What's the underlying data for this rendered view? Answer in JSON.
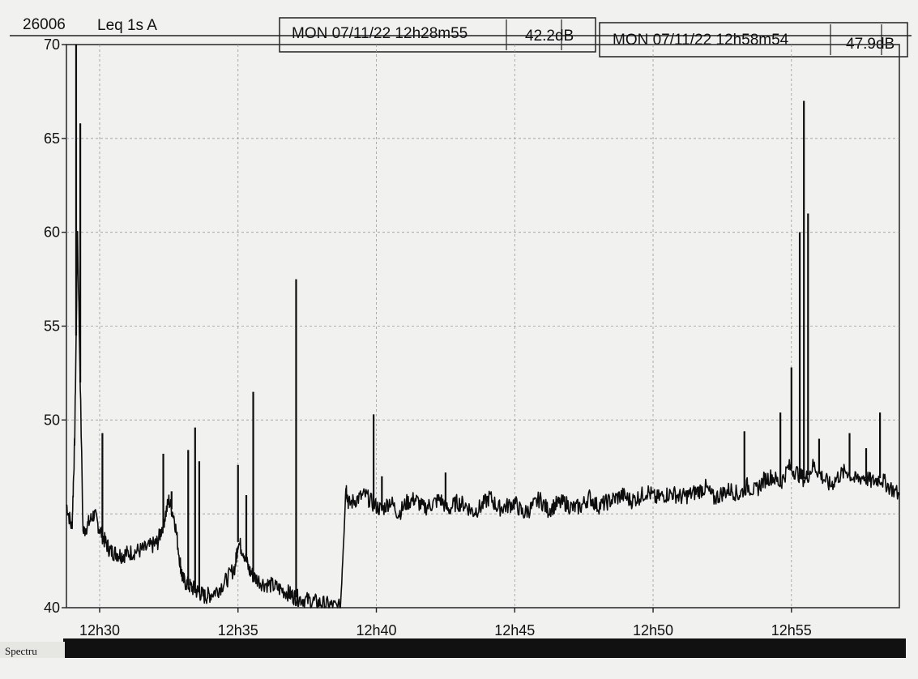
{
  "header": {
    "channel_id": "26006",
    "measure": "Leq 1s  A",
    "cursor1": {
      "datetime": "MON 07/11/22 12h28m55",
      "value": "42.2dB"
    },
    "cursor2": {
      "datetime": "MON 07/11/22 12h58m54",
      "value": "47.9dB"
    }
  },
  "footer": {
    "tab_label": "Spectru"
  },
  "colors": {
    "trace": "#0d0d0d",
    "grid": "#9a9a9a",
    "background": "#f1f1ef"
  },
  "chart_data": {
    "type": "line",
    "title": "",
    "xlabel": "",
    "ylabel": "",
    "ylim": [
      40,
      70
    ],
    "yticks": [
      "40",
      "50",
      "55",
      "60",
      "65",
      "70"
    ],
    "xlim_minutes": [
      28.8,
      58.9
    ],
    "xticks": [
      {
        "label": "12h30",
        "minute": 30
      },
      {
        "label": "12h35",
        "minute": 35
      },
      {
        "label": "12h40",
        "minute": 40
      },
      {
        "label": "12h45",
        "minute": 45
      },
      {
        "label": "12h50",
        "minute": 50
      },
      {
        "label": "12h55",
        "minute": 55
      }
    ],
    "grid": true,
    "series": [
      {
        "x_minutes": [
          28.8,
          29.0,
          29.1,
          29.2,
          29.4,
          29.6,
          29.8,
          30.0,
          30.2,
          30.4,
          30.6,
          30.8,
          31.0,
          31.3,
          31.6,
          31.9,
          32.1,
          32.3,
          32.5,
          32.7,
          32.9,
          33.0,
          33.2,
          33.4,
          33.6,
          33.8,
          34.0,
          34.3,
          34.6,
          34.9,
          35.0,
          35.2,
          35.4,
          35.6,
          35.9,
          36.2,
          36.5,
          36.8,
          37.0,
          37.2,
          37.5,
          37.8,
          38.1,
          38.4,
          38.7,
          38.9,
          39.0,
          39.3,
          39.6,
          39.9,
          40.2,
          40.5,
          40.8,
          41.1,
          41.4,
          41.7,
          42.0,
          42.3,
          42.6,
          42.9,
          43.2,
          43.5,
          43.8,
          44.1,
          44.4,
          44.7,
          45.0,
          45.3,
          45.6,
          45.9,
          46.2,
          46.5,
          46.8,
          47.1,
          47.4,
          47.7,
          48.0,
          48.3,
          48.6,
          48.9,
          49.2,
          49.5,
          49.8,
          50.1,
          50.4,
          50.7,
          51.0,
          51.3,
          51.6,
          51.9,
          52.2,
          52.5,
          52.8,
          53.1,
          53.4,
          53.7,
          54.0,
          54.3,
          54.6,
          54.9,
          55.2,
          55.5,
          55.8,
          56.1,
          56.4,
          56.7,
          57.0,
          57.3,
          57.6,
          57.9,
          58.2,
          58.5,
          58.9
        ],
        "values": [
          45.5,
          44.2,
          49.0,
          60.0,
          44.0,
          44.5,
          45.0,
          44.2,
          43.5,
          43.0,
          42.9,
          42.8,
          42.9,
          43.0,
          43.1,
          43.3,
          43.5,
          44.5,
          45.7,
          44.8,
          42.5,
          41.5,
          41.2,
          41.0,
          40.8,
          40.6,
          40.7,
          41.0,
          41.5,
          42.2,
          43.5,
          43.0,
          42.0,
          41.6,
          41.3,
          41.2,
          41.0,
          40.8,
          40.6,
          40.5,
          40.4,
          40.3,
          40.2,
          40.1,
          40.0,
          46.5,
          45.5,
          45.8,
          46.0,
          45.5,
          45.2,
          45.7,
          45.0,
          45.6,
          45.8,
          45.3,
          45.5,
          45.8,
          45.2,
          45.6,
          45.5,
          45.1,
          45.4,
          45.9,
          45.3,
          45.4,
          45.6,
          45.0,
          45.3,
          45.8,
          45.2,
          45.5,
          45.6,
          45.3,
          45.4,
          45.9,
          45.4,
          45.6,
          45.8,
          46.0,
          45.7,
          45.9,
          46.2,
          45.8,
          46.0,
          46.1,
          45.9,
          46.0,
          46.2,
          46.4,
          45.8,
          46.1,
          46.3,
          46.0,
          46.5,
          46.2,
          46.8,
          47.0,
          46.6,
          47.5,
          47.2,
          46.8,
          47.6,
          47.0,
          46.5,
          47.0,
          47.3,
          46.8,
          47.0,
          46.7,
          46.9,
          46.5,
          46.0
        ]
      }
    ],
    "spikes": [
      {
        "minute": 29.15,
        "value": 70.0
      },
      {
        "minute": 29.3,
        "value": 65.8
      },
      {
        "minute": 30.1,
        "value": 49.3
      },
      {
        "minute": 32.3,
        "value": 48.2
      },
      {
        "minute": 32.6,
        "value": 46.2
      },
      {
        "minute": 33.2,
        "value": 48.4
      },
      {
        "minute": 33.45,
        "value": 49.6
      },
      {
        "minute": 33.6,
        "value": 47.8
      },
      {
        "minute": 35.0,
        "value": 47.6
      },
      {
        "minute": 35.3,
        "value": 46.0
      },
      {
        "minute": 35.55,
        "value": 51.5
      },
      {
        "minute": 37.1,
        "value": 57.5
      },
      {
        "minute": 39.9,
        "value": 50.3
      },
      {
        "minute": 40.2,
        "value": 47.0
      },
      {
        "minute": 42.5,
        "value": 47.2
      },
      {
        "minute": 53.3,
        "value": 49.4
      },
      {
        "minute": 54.6,
        "value": 50.4
      },
      {
        "minute": 55.0,
        "value": 52.8
      },
      {
        "minute": 55.3,
        "value": 60.0
      },
      {
        "minute": 55.45,
        "value": 67.0
      },
      {
        "minute": 55.6,
        "value": 61.0
      },
      {
        "minute": 56.0,
        "value": 49.0
      },
      {
        "minute": 57.1,
        "value": 49.3
      },
      {
        "minute": 57.7,
        "value": 48.5
      },
      {
        "minute": 58.2,
        "value": 50.4
      }
    ]
  }
}
